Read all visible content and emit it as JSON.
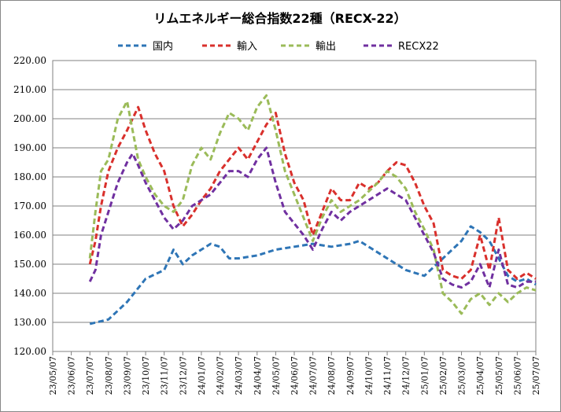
{
  "chart_data": {
    "type": "line",
    "title": "リムエネルギー総合指数22種（RECX-22）",
    "xlabel": "",
    "ylabel": "",
    "ylim": [
      120,
      220
    ],
    "y_ticks": [
      "120.00",
      "130.00",
      "140.00",
      "150.00",
      "160.00",
      "170.00",
      "180.00",
      "190.00",
      "200.00",
      "210.00",
      "220.00"
    ],
    "x_ticks": [
      "23/05/07",
      "23/06/07",
      "23/07/07",
      "23/08/07",
      "23/09/07",
      "23/10/07",
      "23/11/07",
      "23/12/07",
      "24/01/07",
      "24/02/07",
      "24/03/07",
      "24/04/07",
      "24/05/07",
      "24/06/07",
      "24/07/07",
      "24/08/07",
      "24/09/07",
      "24/10/07",
      "24/11/07",
      "24/12/07",
      "25/01/07",
      "25/02/07",
      "25/03/07",
      "25/04/07",
      "25/05/07",
      "25/06/07",
      "25/07/07"
    ],
    "grid": true,
    "legend_position": "top",
    "series": [
      {
        "name": "国内",
        "color": "#2E75B6",
        "x": [
          0,
          1,
          2,
          3,
          4,
          5,
          6,
          6.5,
          7,
          7.5,
          8,
          8.5,
          9,
          9.5,
          10,
          11,
          12,
          13,
          14,
          15,
          16,
          16.5,
          17,
          18,
          19,
          20,
          21,
          21.5,
          22,
          22.5,
          23,
          23.5,
          24,
          24.5,
          25,
          25.5,
          26
        ],
        "values": [
          null,
          null,
          129.5,
          131,
          137,
          145,
          148,
          155,
          150,
          153,
          155,
          157,
          156,
          152,
          152,
          153,
          155,
          156,
          157,
          156,
          157,
          158,
          156,
          152,
          148,
          146,
          152,
          155,
          158,
          163,
          161,
          158,
          152,
          146,
          144,
          145,
          143
        ]
      },
      {
        "name": "輸入",
        "color": "#D9302C",
        "x": [
          0,
          1,
          2,
          2.3,
          2.6,
          3,
          3.5,
          4,
          4.3,
          4.6,
          5,
          5.5,
          6,
          6.5,
          7,
          7.5,
          8,
          8.5,
          9,
          9.5,
          10,
          10.5,
          11,
          11.5,
          12,
          12.5,
          13,
          13.5,
          14,
          14.5,
          15,
          15.5,
          16,
          16.5,
          17,
          17.5,
          18,
          18.5,
          19,
          19.5,
          20,
          20.5,
          21,
          21.5,
          22,
          22.5,
          23,
          23.5,
          24,
          24.5,
          25,
          25.5,
          26
        ],
        "values": [
          null,
          null,
          150,
          158,
          170,
          182,
          190,
          196,
          200,
          204,
          196,
          188,
          182,
          170,
          163,
          167,
          172,
          176,
          182,
          186,
          190,
          186,
          192,
          198,
          202,
          188,
          178,
          172,
          160,
          168,
          176,
          172,
          172,
          178,
          176,
          178,
          182,
          185,
          184,
          178,
          170,
          164,
          148,
          146,
          145,
          148,
          160,
          148,
          166,
          148,
          145,
          147,
          145
        ]
      },
      {
        "name": "輸出",
        "color": "#9BBB59",
        "x": [
          0,
          1,
          2,
          2.3,
          2.6,
          3,
          3.5,
          4,
          4.3,
          4.6,
          5,
          5.5,
          6,
          6.5,
          7,
          7.5,
          8,
          8.5,
          9,
          9.5,
          10,
          10.5,
          11,
          11.5,
          12,
          12.5,
          13,
          13.5,
          14,
          14.5,
          15,
          15.5,
          16,
          16.5,
          17,
          17.5,
          18,
          18.5,
          19,
          19.5,
          20,
          20.5,
          21,
          21.5,
          22,
          22.5,
          23,
          23.5,
          24,
          24.5,
          25,
          25.5,
          26
        ],
        "values": [
          null,
          null,
          152,
          168,
          182,
          186,
          200,
          206,
          196,
          186,
          180,
          174,
          170,
          168,
          172,
          184,
          190,
          186,
          195,
          202,
          200,
          196,
          204,
          208,
          196,
          182,
          174,
          166,
          158,
          166,
          172,
          168,
          170,
          172,
          175,
          178,
          182,
          180,
          176,
          168,
          162,
          155,
          140,
          137,
          133,
          138,
          140,
          136,
          140,
          137,
          140,
          142,
          141
        ]
      },
      {
        "name": "RECX22",
        "color": "#7030A0",
        "x": [
          0,
          1,
          2,
          2.3,
          2.6,
          3,
          3.5,
          4,
          4.3,
          4.6,
          5,
          5.5,
          6,
          6.5,
          7,
          7.5,
          8,
          8.5,
          9,
          9.5,
          10,
          10.5,
          11,
          11.5,
          12,
          12.5,
          13,
          13.5,
          14,
          14.5,
          15,
          15.5,
          16,
          16.5,
          17,
          17.5,
          18,
          18.5,
          19,
          19.5,
          20,
          20.5,
          21,
          21.5,
          22,
          22.5,
          23,
          23.5,
          24,
          24.5,
          25,
          25.5,
          26
        ],
        "values": [
          null,
          null,
          144,
          148,
          160,
          168,
          178,
          185,
          188,
          184,
          178,
          172,
          166,
          162,
          165,
          170,
          172,
          174,
          178,
          182,
          182,
          180,
          186,
          190,
          178,
          168,
          164,
          160,
          155,
          162,
          168,
          165,
          168,
          170,
          172,
          174,
          176,
          174,
          172,
          166,
          160,
          154,
          145,
          143,
          142,
          144,
          150,
          142,
          155,
          143,
          142,
          144,
          144
        ]
      }
    ]
  }
}
